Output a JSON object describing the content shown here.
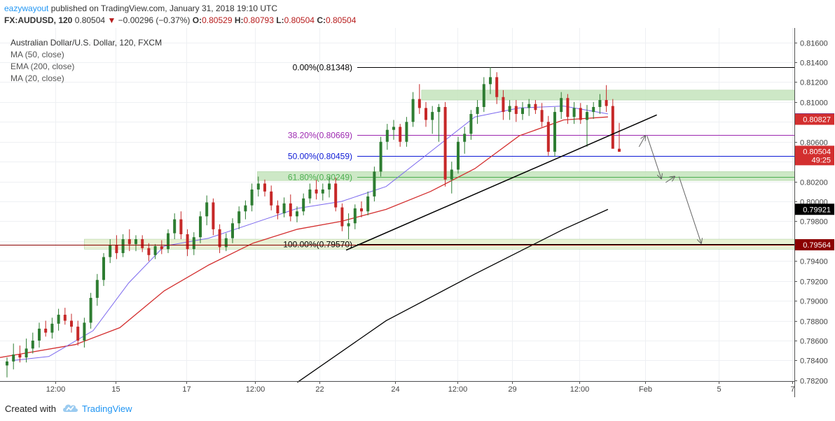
{
  "header": {
    "author": "eazywayout",
    "published_text": "published on TradingView.com, January 31, 2018 19:10 UTC",
    "symbol": "FX:AUDUSD, 120",
    "last": "0.80504",
    "change": "−0.00296 (−0.37%)",
    "o_label": "O:",
    "o_value": "0.80529",
    "h_label": "H:",
    "h_value": "0.80793",
    "l_label": "L:",
    "l_value": "0.80504",
    "c_label": "C:",
    "c_value": "0.80504"
  },
  "legend": {
    "title": "Australian Dollar/U.S. Dollar, 120, FXCM",
    "items": [
      "MA (50, close)",
      "EMA (200, close)",
      "MA (20, close)"
    ]
  },
  "chart_data": {
    "type": "candlestick",
    "title": "Australian Dollar/U.S. Dollar, 120, FXCM",
    "ylim": [
      0.78192,
      0.81745
    ],
    "y_ticks": [
      "0.81600",
      "0.81400",
      "0.81200",
      "0.81000",
      "0.80800",
      "0.80600",
      "0.80400",
      "0.80200",
      "0.80000",
      "0.79800",
      "0.79600",
      "0.79400",
      "0.79200",
      "0.79000",
      "0.78800",
      "0.78600",
      "0.78400",
      "0.78200"
    ],
    "y_tick_values": [
      0.816,
      0.814,
      0.812,
      0.81,
      0.808,
      0.806,
      0.804,
      0.802,
      0.8,
      0.798,
      0.796,
      0.794,
      0.792,
      0.79,
      0.788,
      0.786,
      0.784,
      0.782
    ],
    "x_ticks": [
      "12:00",
      "15",
      "17",
      "12:00",
      "22",
      "24",
      "12:00",
      "29",
      "12:00",
      "Feb",
      "5",
      "7"
    ],
    "x_tick_positions": [
      0.27,
      0.95,
      1.75,
      2.52,
      3.25,
      4.1,
      4.8,
      5.42,
      6.18,
      6.92,
      7.75,
      8.58
    ],
    "x_range": [
      -0.35,
      8.6
    ],
    "candles_ohlc": [
      [
        0.7835,
        0.7843,
        0.7823,
        0.7839
      ],
      [
        0.7839,
        0.7857,
        0.7831,
        0.7846
      ],
      [
        0.7846,
        0.7855,
        0.7838,
        0.7843
      ],
      [
        0.7843,
        0.7862,
        0.7838,
        0.7852
      ],
      [
        0.7852,
        0.7868,
        0.7847,
        0.786
      ],
      [
        0.786,
        0.7878,
        0.7853,
        0.7872
      ],
      [
        0.7872,
        0.788,
        0.7864,
        0.7868
      ],
      [
        0.7868,
        0.7883,
        0.7862,
        0.7877
      ],
      [
        0.7877,
        0.7892,
        0.787,
        0.7886
      ],
      [
        0.7886,
        0.7893,
        0.7876,
        0.788
      ],
      [
        0.788,
        0.7887,
        0.7868,
        0.7874
      ],
      [
        0.7874,
        0.788,
        0.7855,
        0.786
      ],
      [
        0.786,
        0.7883,
        0.7853,
        0.7878
      ],
      [
        0.7878,
        0.7908,
        0.7872,
        0.7903
      ],
      [
        0.7903,
        0.7927,
        0.7895,
        0.7921
      ],
      [
        0.7921,
        0.7948,
        0.7915,
        0.7944
      ],
      [
        0.7944,
        0.7962,
        0.7938,
        0.7956
      ],
      [
        0.7956,
        0.7966,
        0.7942,
        0.7948
      ],
      [
        0.7948,
        0.7967,
        0.7944,
        0.7962
      ],
      [
        0.7962,
        0.7972,
        0.795,
        0.7957
      ],
      [
        0.7957,
        0.7966,
        0.795,
        0.7962
      ],
      [
        0.7962,
        0.7966,
        0.7949,
        0.7953
      ],
      [
        0.7953,
        0.7958,
        0.794,
        0.7946
      ],
      [
        0.7946,
        0.7957,
        0.7942,
        0.7955
      ],
      [
        0.7955,
        0.7961,
        0.7947,
        0.7952
      ],
      [
        0.7952,
        0.7972,
        0.7948,
        0.7968
      ],
      [
        0.7968,
        0.7988,
        0.7962,
        0.7982
      ],
      [
        0.7982,
        0.799,
        0.7962,
        0.7967
      ],
      [
        0.7967,
        0.7972,
        0.7945,
        0.7952
      ],
      [
        0.7952,
        0.7969,
        0.7946,
        0.7964
      ],
      [
        0.7964,
        0.799,
        0.7958,
        0.7985
      ],
      [
        0.7985,
        0.8006,
        0.7976,
        0.7999
      ],
      [
        0.7999,
        0.8003,
        0.7966,
        0.7972
      ],
      [
        0.7972,
        0.7977,
        0.7948,
        0.7954
      ],
      [
        0.7954,
        0.7968,
        0.795,
        0.7963
      ],
      [
        0.7963,
        0.7983,
        0.7958,
        0.7978
      ],
      [
        0.7978,
        0.7995,
        0.7972,
        0.799
      ],
      [
        0.799,
        0.8001,
        0.7982,
        0.7996
      ],
      [
        0.7996,
        0.8018,
        0.799,
        0.8012
      ],
      [
        0.8012,
        0.8025,
        0.8005,
        0.8018
      ],
      [
        0.8018,
        0.8022,
        0.8005,
        0.801
      ],
      [
        0.801,
        0.8016,
        0.7991,
        0.7996
      ],
      [
        0.7996,
        0.8001,
        0.7982,
        0.7988
      ],
      [
        0.7988,
        0.8004,
        0.7984,
        0.7998
      ],
      [
        0.7998,
        0.8007,
        0.798,
        0.7985
      ],
      [
        0.7985,
        0.7995,
        0.7979,
        0.799
      ],
      [
        0.799,
        0.8008,
        0.7986,
        0.8003
      ],
      [
        0.8003,
        0.8018,
        0.7998,
        0.8012
      ],
      [
        0.8012,
        0.8022,
        0.8002,
        0.8008
      ],
      [
        0.8008,
        0.8018,
        0.8001,
        0.8012
      ],
      [
        0.8012,
        0.8024,
        0.8004,
        0.8018
      ],
      [
        0.8018,
        0.8024,
        0.799,
        0.7994
      ],
      [
        0.7994,
        0.7998,
        0.797,
        0.7975
      ],
      [
        0.7975,
        0.7988,
        0.7962,
        0.7978
      ],
      [
        0.7978,
        0.7997,
        0.7972,
        0.7993
      ],
      [
        0.7993,
        0.8,
        0.7984,
        0.799
      ],
      [
        0.799,
        0.801,
        0.7986,
        0.8005
      ],
      [
        0.8005,
        0.8035,
        0.8,
        0.803
      ],
      [
        0.803,
        0.8065,
        0.8025,
        0.806
      ],
      [
        0.806,
        0.8078,
        0.8052,
        0.8072
      ],
      [
        0.8072,
        0.8082,
        0.8062,
        0.8075
      ],
      [
        0.8075,
        0.8078,
        0.8055,
        0.806
      ],
      [
        0.806,
        0.8085,
        0.8055,
        0.808
      ],
      [
        0.808,
        0.811,
        0.8075,
        0.8103
      ],
      [
        0.8103,
        0.8118,
        0.8088,
        0.8094
      ],
      [
        0.8094,
        0.81,
        0.8075,
        0.8082
      ],
      [
        0.8082,
        0.8096,
        0.8068,
        0.809
      ],
      [
        0.809,
        0.8098,
        0.806,
        0.8095
      ],
      [
        0.8095,
        0.81,
        0.8015,
        0.8022
      ],
      [
        0.8022,
        0.804,
        0.8008,
        0.8032
      ],
      [
        0.8032,
        0.8065,
        0.8028,
        0.806
      ],
      [
        0.806,
        0.8075,
        0.8048,
        0.8068
      ],
      [
        0.8068,
        0.8092,
        0.8062,
        0.8088
      ],
      [
        0.8088,
        0.8102,
        0.8078,
        0.8095
      ],
      [
        0.8095,
        0.8125,
        0.809,
        0.8118
      ],
      [
        0.8118,
        0.8135,
        0.8108,
        0.8125
      ],
      [
        0.8125,
        0.813,
        0.8098,
        0.8105
      ],
      [
        0.8105,
        0.8112,
        0.8082,
        0.809
      ],
      [
        0.809,
        0.8102,
        0.8082,
        0.8096
      ],
      [
        0.8096,
        0.8102,
        0.808,
        0.8088
      ],
      [
        0.8088,
        0.81,
        0.8082,
        0.8094
      ],
      [
        0.8094,
        0.8103,
        0.8086,
        0.8098
      ],
      [
        0.8098,
        0.8102,
        0.8088,
        0.8092
      ],
      [
        0.8092,
        0.8099,
        0.8075,
        0.808
      ],
      [
        0.808,
        0.8086,
        0.8046,
        0.805
      ],
      [
        0.805,
        0.8095,
        0.8045,
        0.809
      ],
      [
        0.809,
        0.811,
        0.8083,
        0.8104
      ],
      [
        0.8104,
        0.8108,
        0.8078,
        0.8085
      ],
      [
        0.8085,
        0.81,
        0.8078,
        0.8094
      ],
      [
        0.8094,
        0.8099,
        0.8078,
        0.8082
      ],
      [
        0.8082,
        0.8097,
        0.8055,
        0.809
      ],
      [
        0.809,
        0.81,
        0.8083,
        0.8095
      ],
      [
        0.8095,
        0.8108,
        0.8088,
        0.8102
      ],
      [
        0.8102,
        0.8117,
        0.809,
        0.8096
      ],
      [
        0.8096,
        0.8103,
        0.8062,
        0.8053
      ],
      [
        0.8053,
        0.8079,
        0.805,
        0.805
      ]
    ],
    "series": [
      {
        "name": "MA (50, close)",
        "color": "#000000",
        "values": [
          [
            3.0,
            0.7818
          ],
          [
            4.0,
            0.788
          ],
          [
            5.0,
            0.7927
          ],
          [
            6.0,
            0.7972
          ],
          [
            6.5,
            0.7992
          ]
        ]
      },
      {
        "name": "EMA (200, close)",
        "color": "#d32f2f",
        "values": [
          [
            -0.35,
            0.7843
          ],
          [
            0.5,
            0.7856
          ],
          [
            1.0,
            0.7873
          ],
          [
            1.5,
            0.791
          ],
          [
            2.0,
            0.7936
          ],
          [
            2.5,
            0.7958
          ],
          [
            3.0,
            0.7972
          ],
          [
            3.5,
            0.798
          ],
          [
            4.0,
            0.7992
          ],
          [
            4.5,
            0.801
          ],
          [
            5.0,
            0.8033
          ],
          [
            5.5,
            0.8066
          ],
          [
            6.0,
            0.8082
          ],
          [
            6.5,
            0.8085
          ]
        ]
      },
      {
        "name": "MA (20, close)",
        "color": "#7b68ee",
        "values": [
          [
            -0.2,
            0.784
          ],
          [
            0.2,
            0.7844
          ],
          [
            0.7,
            0.787
          ],
          [
            1.1,
            0.7918
          ],
          [
            1.5,
            0.7955
          ],
          [
            2.0,
            0.7963
          ],
          [
            2.5,
            0.7978
          ],
          [
            3.0,
            0.7993
          ],
          [
            3.5,
            0.8
          ],
          [
            4.0,
            0.8015
          ],
          [
            4.5,
            0.805
          ],
          [
            5.0,
            0.8085
          ],
          [
            5.5,
            0.8094
          ],
          [
            6.0,
            0.8096
          ],
          [
            6.5,
            0.8088
          ]
        ]
      }
    ],
    "fibonacci": [
      {
        "label": "0.00%(0.81348)",
        "value": 0.81348,
        "color": "#000000"
      },
      {
        "label": "38.20%(0.80669)",
        "value": 0.80669,
        "color": "#9c27b0"
      },
      {
        "label": "50.00%(0.80459)",
        "value": 0.80459,
        "color": "#0d1ad6"
      },
      {
        "label": "61.80%(0.80249)",
        "value": 0.80249,
        "color": "#4caf50"
      },
      {
        "label": "100.00%(0.79570)",
        "value": 0.7957,
        "color": "#000000"
      }
    ],
    "zones": [
      {
        "from": 0.8102,
        "to": 0.8112,
        "x_from": 4.4,
        "color": "#c8e6c0"
      },
      {
        "from": 0.8021,
        "to": 0.803,
        "x_from": 2.55,
        "color": "#c8e6c0"
      },
      {
        "from": 0.7952,
        "to": 0.7962,
        "x_from": 0.6,
        "color": "#e7efcf"
      }
    ],
    "trendline": {
      "points": [
        [
          3.55,
          0.7951
        ],
        [
          7.05,
          0.8087
        ]
      ],
      "color": "#000000"
    },
    "horizontal_level": {
      "value": 0.79564,
      "color": "#8b0000"
    },
    "price_labels": [
      {
        "text": "0.80830",
        "value": 0.8083,
        "color": "#2828c8"
      },
      {
        "text": "0.80827",
        "value": 0.80827,
        "color": "#d32f2f"
      },
      {
        "text": "0.80504",
        "value": 0.80504,
        "color": "#d32f2f"
      },
      {
        "text": "49:25",
        "value": 0.8042,
        "color": "#d32f2f"
      },
      {
        "text": "0.79921",
        "value": 0.79921,
        "color": "#000000"
      },
      {
        "text": "0.79564",
        "value": 0.79564,
        "color": "#8b0000"
      }
    ],
    "projection_arrows": [
      [
        [
          6.85,
          0.8055
        ],
        [
          6.92,
          0.8066
        ]
      ],
      [
        [
          6.94,
          0.8066
        ],
        [
          7.1,
          0.8023
        ]
      ],
      [
        [
          7.15,
          0.8019
        ],
        [
          7.25,
          0.8025
        ]
      ],
      [
        [
          7.3,
          0.8025
        ],
        [
          7.55,
          0.7958
        ]
      ]
    ],
    "grid": true,
    "colors": {
      "up": "#2e7d32",
      "down": "#c62828"
    }
  },
  "footer": {
    "created_with": "Created with",
    "brand": "TradingView"
  }
}
